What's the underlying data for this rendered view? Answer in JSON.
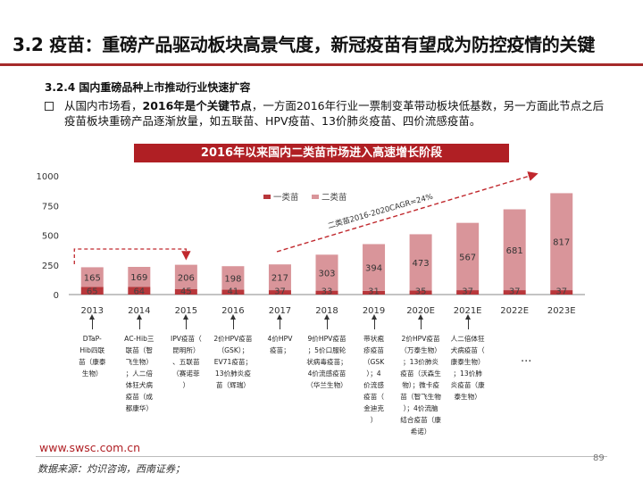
{
  "page": {
    "title": "3.2 疫苗：重磅产品驱动板块高景气度，新冠疫苗有望成为防控疫情的关键",
    "section": "3.2.4 国内重磅品种上市推动行业快速扩容",
    "bullet": {
      "pre": "从国内市场看，",
      "bold": "2016年是个关键节点",
      "post": "，一方面2016年行业一票制变革带动板块低基数，另一方面此节点之后疫苗板块重磅产品逐渐放量，如五联苗、HPV疫苗、13价肺炎疫苗、四价流感疫苗。"
    },
    "banner": "2016年以来国内二类苗市场进入高速增长阶段",
    "footer_url": "www.swsc.com.cn",
    "page_number": "89",
    "source": "数据来源：灼识咨询，西南证券；"
  },
  "chart_data": {
    "type": "bar",
    "stacked": true,
    "categories": [
      "2013",
      "2014",
      "2015",
      "2016",
      "2017",
      "2018",
      "2019",
      "2020E",
      "2021E",
      "2022E",
      "2023E"
    ],
    "series": [
      {
        "name": "一类苗",
        "color": "#b8373b",
        "values": [
          65,
          64,
          45,
          41,
          37,
          33,
          31,
          35,
          37,
          37,
          37
        ]
      },
      {
        "name": "二类苗",
        "color": "#d9959a",
        "values": [
          165,
          169,
          206,
          198,
          217,
          303,
          394,
          473,
          567,
          681,
          817
        ]
      }
    ],
    "yticks": [
      0,
      250,
      500,
      750,
      1000
    ],
    "ylim": [
      0,
      1000
    ],
    "legend_position": "top-center",
    "cagr_label": "二类苗2016-2020CAGR=24%"
  },
  "events": [
    {
      "year": "2013",
      "lines": [
        "DTaP-",
        "Hib四联",
        "苗（康泰",
        "生物）"
      ]
    },
    {
      "year": "2014",
      "lines": [
        "AC-Hib三",
        "联苗（智",
        "飞生物）",
        "；人二倍",
        "体狂犬病",
        "疫苗（成",
        "都康华）"
      ]
    },
    {
      "year": "2015",
      "lines": [
        "IPV疫苗（",
        "昆明所）",
        "、五联苗",
        "（赛诺菲",
        "）"
      ]
    },
    {
      "year": "2016",
      "lines": [
        "2价HPV疫苗",
        "（GSK）；",
        "EV71疫苗；",
        "13价肺炎疫",
        "苗（辉瑞）"
      ]
    },
    {
      "year": "2017",
      "lines": [
        "4价HPV",
        "疫苗；"
      ]
    },
    {
      "year": "2018",
      "lines": [
        "9价HPV疫苗",
        "；5价口服轮",
        "状病毒疫苗；",
        "4价流感疫苗",
        "（华兰生物）"
      ]
    },
    {
      "year": "2019",
      "lines": [
        "带状疱",
        "疹疫苗",
        "（GSK",
        "）；4",
        "价流感",
        "疫苗（",
        "金迪克",
        "）"
      ]
    },
    {
      "year": "2020E",
      "lines": [
        "2价HPV疫苗",
        "（万泰生物）",
        "；13价肺炎",
        "疫苗（沃森生",
        "物）；微卡疫",
        "苗（智飞生物",
        "）；4价流脑",
        "结合疫苗（康",
        "希诺）"
      ]
    },
    {
      "year": "2021E",
      "lines": [
        "人二倍体狂",
        "犬病疫苗（",
        "康泰生物）",
        "；13价肺",
        "炎疫苗（康",
        "泰生物）"
      ]
    }
  ],
  "more_marker": "···"
}
